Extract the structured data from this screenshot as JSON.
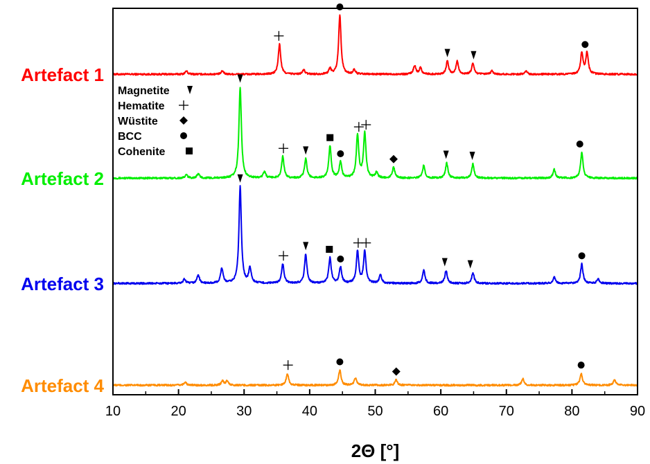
{
  "chart_data": {
    "type": "line",
    "xlabel": "2Θ [°]",
    "ylabel": "",
    "xlim": [
      10,
      90
    ],
    "xticks": [
      10,
      20,
      30,
      40,
      50,
      60,
      70,
      80,
      90
    ],
    "grid": false,
    "legend_position": "top-left",
    "legend": [
      {
        "label": "Magnetite",
        "marker": "triangle-down"
      },
      {
        "label": "Hematite",
        "marker": "plus"
      },
      {
        "label": "Wüstite",
        "marker": "diamond"
      },
      {
        "label": "BCC",
        "marker": "circle"
      },
      {
        "label": "Cohenite",
        "marker": "square"
      }
    ],
    "series": [
      {
        "name": "Artefact 1",
        "color": "#ff0000",
        "baseline": 0.5,
        "peaks": [
          [
            21.2,
            3
          ],
          [
            26.7,
            3
          ],
          [
            35.4,
            28
          ],
          [
            39.1,
            4
          ],
          [
            43.1,
            5
          ],
          [
            44.6,
            55
          ],
          [
            46.8,
            4
          ],
          [
            56.0,
            8
          ],
          [
            56.9,
            6
          ],
          [
            61.0,
            12
          ],
          [
            62.5,
            12
          ],
          [
            64.9,
            10
          ],
          [
            67.8,
            3
          ],
          [
            73.0,
            3
          ],
          [
            81.5,
            20
          ],
          [
            82.3,
            20
          ]
        ],
        "markers": [
          {
            "x": 35.3,
            "type": "plus"
          },
          {
            "x": 44.6,
            "type": "circle"
          },
          {
            "x": 61.0,
            "type": "triangle-down"
          },
          {
            "x": 65.0,
            "type": "triangle-down"
          },
          {
            "x": 82.0,
            "type": "circle"
          }
        ]
      },
      {
        "name": "Artefact 2",
        "color": "#00ee00",
        "baseline": 0.5,
        "peaks": [
          [
            21.2,
            3
          ],
          [
            23.0,
            4
          ],
          [
            29.4,
            85
          ],
          [
            33.1,
            6
          ],
          [
            35.9,
            20
          ],
          [
            39.4,
            18
          ],
          [
            43.1,
            30
          ],
          [
            44.7,
            15
          ],
          [
            47.3,
            40
          ],
          [
            48.4,
            42
          ],
          [
            50.2,
            5
          ],
          [
            52.8,
            10
          ],
          [
            57.4,
            12
          ],
          [
            60.9,
            14
          ],
          [
            64.9,
            13
          ],
          [
            77.3,
            8
          ],
          [
            81.5,
            24
          ]
        ],
        "markers": [
          {
            "x": 29.4,
            "type": "triangle-down"
          },
          {
            "x": 36.0,
            "type": "plus"
          },
          {
            "x": 39.4,
            "type": "triangle-down"
          },
          {
            "x": 43.1,
            "type": "square"
          },
          {
            "x": 44.7,
            "type": "circle"
          },
          {
            "x": 47.5,
            "type": "plus"
          },
          {
            "x": 48.6,
            "type": "plus"
          },
          {
            "x": 52.8,
            "type": "diamond"
          },
          {
            "x": 60.8,
            "type": "triangle-down"
          },
          {
            "x": 64.8,
            "type": "triangle-down"
          },
          {
            "x": 81.2,
            "type": "circle"
          }
        ]
      },
      {
        "name": "Artefact 3",
        "color": "#0000ee",
        "baseline": 0.5,
        "peaks": [
          [
            20.9,
            4
          ],
          [
            23.0,
            8
          ],
          [
            26.6,
            14
          ],
          [
            29.4,
            90
          ],
          [
            30.9,
            14
          ],
          [
            35.9,
            18
          ],
          [
            39.4,
            27
          ],
          [
            43.1,
            24
          ],
          [
            44.7,
            15
          ],
          [
            47.3,
            30
          ],
          [
            48.4,
            30
          ],
          [
            50.8,
            8
          ],
          [
            57.4,
            12
          ],
          [
            60.8,
            12
          ],
          [
            64.9,
            10
          ],
          [
            77.3,
            6
          ],
          [
            81.5,
            18
          ],
          [
            84.0,
            4
          ]
        ],
        "markers": [
          {
            "x": 29.4,
            "type": "triangle-down"
          },
          {
            "x": 36.0,
            "type": "plus"
          },
          {
            "x": 39.4,
            "type": "triangle-down"
          },
          {
            "x": 43.0,
            "type": "square"
          },
          {
            "x": 44.7,
            "type": "circle"
          },
          {
            "x": 47.4,
            "type": "plus"
          },
          {
            "x": 48.6,
            "type": "plus"
          },
          {
            "x": 60.6,
            "type": "triangle-down"
          },
          {
            "x": 64.5,
            "type": "triangle-down"
          },
          {
            "x": 81.5,
            "type": "circle"
          }
        ]
      },
      {
        "name": "Artefact 4",
        "color": "#ff8c00",
        "baseline": 0.5,
        "peaks": [
          [
            21.0,
            3
          ],
          [
            26.7,
            4
          ],
          [
            27.4,
            4
          ],
          [
            36.6,
            11
          ],
          [
            44.6,
            14
          ],
          [
            47.0,
            7
          ],
          [
            53.2,
            5
          ],
          [
            72.5,
            6
          ],
          [
            81.4,
            11
          ],
          [
            86.5,
            5
          ]
        ],
        "markers": [
          {
            "x": 36.7,
            "type": "plus"
          },
          {
            "x": 44.6,
            "type": "circle"
          },
          {
            "x": 53.2,
            "type": "diamond"
          },
          {
            "x": 81.4,
            "type": "circle"
          }
        ]
      }
    ]
  }
}
